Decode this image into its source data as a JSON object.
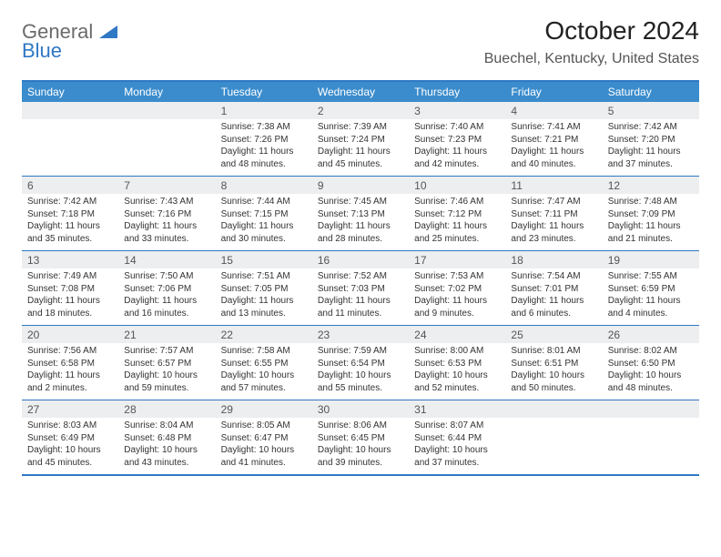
{
  "logo": {
    "general": "General",
    "blue": "Blue"
  },
  "title": "October 2024",
  "location": "Buechel, Kentucky, United States",
  "colors": {
    "header_bg": "#3b8ccc",
    "border": "#2f78c4",
    "daynum_bg": "#eceef0",
    "text": "#333333",
    "muted": "#555555"
  },
  "dayNames": [
    "Sunday",
    "Monday",
    "Tuesday",
    "Wednesday",
    "Thursday",
    "Friday",
    "Saturday"
  ],
  "weeks": [
    [
      {
        "num": "",
        "sunrise": "",
        "sunset": "",
        "daylight": ""
      },
      {
        "num": "",
        "sunrise": "",
        "sunset": "",
        "daylight": ""
      },
      {
        "num": "1",
        "sunrise": "Sunrise: 7:38 AM",
        "sunset": "Sunset: 7:26 PM",
        "daylight": "Daylight: 11 hours and 48 minutes."
      },
      {
        "num": "2",
        "sunrise": "Sunrise: 7:39 AM",
        "sunset": "Sunset: 7:24 PM",
        "daylight": "Daylight: 11 hours and 45 minutes."
      },
      {
        "num": "3",
        "sunrise": "Sunrise: 7:40 AM",
        "sunset": "Sunset: 7:23 PM",
        "daylight": "Daylight: 11 hours and 42 minutes."
      },
      {
        "num": "4",
        "sunrise": "Sunrise: 7:41 AM",
        "sunset": "Sunset: 7:21 PM",
        "daylight": "Daylight: 11 hours and 40 minutes."
      },
      {
        "num": "5",
        "sunrise": "Sunrise: 7:42 AM",
        "sunset": "Sunset: 7:20 PM",
        "daylight": "Daylight: 11 hours and 37 minutes."
      }
    ],
    [
      {
        "num": "6",
        "sunrise": "Sunrise: 7:42 AM",
        "sunset": "Sunset: 7:18 PM",
        "daylight": "Daylight: 11 hours and 35 minutes."
      },
      {
        "num": "7",
        "sunrise": "Sunrise: 7:43 AM",
        "sunset": "Sunset: 7:16 PM",
        "daylight": "Daylight: 11 hours and 33 minutes."
      },
      {
        "num": "8",
        "sunrise": "Sunrise: 7:44 AM",
        "sunset": "Sunset: 7:15 PM",
        "daylight": "Daylight: 11 hours and 30 minutes."
      },
      {
        "num": "9",
        "sunrise": "Sunrise: 7:45 AM",
        "sunset": "Sunset: 7:13 PM",
        "daylight": "Daylight: 11 hours and 28 minutes."
      },
      {
        "num": "10",
        "sunrise": "Sunrise: 7:46 AM",
        "sunset": "Sunset: 7:12 PM",
        "daylight": "Daylight: 11 hours and 25 minutes."
      },
      {
        "num": "11",
        "sunrise": "Sunrise: 7:47 AM",
        "sunset": "Sunset: 7:11 PM",
        "daylight": "Daylight: 11 hours and 23 minutes."
      },
      {
        "num": "12",
        "sunrise": "Sunrise: 7:48 AM",
        "sunset": "Sunset: 7:09 PM",
        "daylight": "Daylight: 11 hours and 21 minutes."
      }
    ],
    [
      {
        "num": "13",
        "sunrise": "Sunrise: 7:49 AM",
        "sunset": "Sunset: 7:08 PM",
        "daylight": "Daylight: 11 hours and 18 minutes."
      },
      {
        "num": "14",
        "sunrise": "Sunrise: 7:50 AM",
        "sunset": "Sunset: 7:06 PM",
        "daylight": "Daylight: 11 hours and 16 minutes."
      },
      {
        "num": "15",
        "sunrise": "Sunrise: 7:51 AM",
        "sunset": "Sunset: 7:05 PM",
        "daylight": "Daylight: 11 hours and 13 minutes."
      },
      {
        "num": "16",
        "sunrise": "Sunrise: 7:52 AM",
        "sunset": "Sunset: 7:03 PM",
        "daylight": "Daylight: 11 hours and 11 minutes."
      },
      {
        "num": "17",
        "sunrise": "Sunrise: 7:53 AM",
        "sunset": "Sunset: 7:02 PM",
        "daylight": "Daylight: 11 hours and 9 minutes."
      },
      {
        "num": "18",
        "sunrise": "Sunrise: 7:54 AM",
        "sunset": "Sunset: 7:01 PM",
        "daylight": "Daylight: 11 hours and 6 minutes."
      },
      {
        "num": "19",
        "sunrise": "Sunrise: 7:55 AM",
        "sunset": "Sunset: 6:59 PM",
        "daylight": "Daylight: 11 hours and 4 minutes."
      }
    ],
    [
      {
        "num": "20",
        "sunrise": "Sunrise: 7:56 AM",
        "sunset": "Sunset: 6:58 PM",
        "daylight": "Daylight: 11 hours and 2 minutes."
      },
      {
        "num": "21",
        "sunrise": "Sunrise: 7:57 AM",
        "sunset": "Sunset: 6:57 PM",
        "daylight": "Daylight: 10 hours and 59 minutes."
      },
      {
        "num": "22",
        "sunrise": "Sunrise: 7:58 AM",
        "sunset": "Sunset: 6:55 PM",
        "daylight": "Daylight: 10 hours and 57 minutes."
      },
      {
        "num": "23",
        "sunrise": "Sunrise: 7:59 AM",
        "sunset": "Sunset: 6:54 PM",
        "daylight": "Daylight: 10 hours and 55 minutes."
      },
      {
        "num": "24",
        "sunrise": "Sunrise: 8:00 AM",
        "sunset": "Sunset: 6:53 PM",
        "daylight": "Daylight: 10 hours and 52 minutes."
      },
      {
        "num": "25",
        "sunrise": "Sunrise: 8:01 AM",
        "sunset": "Sunset: 6:51 PM",
        "daylight": "Daylight: 10 hours and 50 minutes."
      },
      {
        "num": "26",
        "sunrise": "Sunrise: 8:02 AM",
        "sunset": "Sunset: 6:50 PM",
        "daylight": "Daylight: 10 hours and 48 minutes."
      }
    ],
    [
      {
        "num": "27",
        "sunrise": "Sunrise: 8:03 AM",
        "sunset": "Sunset: 6:49 PM",
        "daylight": "Daylight: 10 hours and 45 minutes."
      },
      {
        "num": "28",
        "sunrise": "Sunrise: 8:04 AM",
        "sunset": "Sunset: 6:48 PM",
        "daylight": "Daylight: 10 hours and 43 minutes."
      },
      {
        "num": "29",
        "sunrise": "Sunrise: 8:05 AM",
        "sunset": "Sunset: 6:47 PM",
        "daylight": "Daylight: 10 hours and 41 minutes."
      },
      {
        "num": "30",
        "sunrise": "Sunrise: 8:06 AM",
        "sunset": "Sunset: 6:45 PM",
        "daylight": "Daylight: 10 hours and 39 minutes."
      },
      {
        "num": "31",
        "sunrise": "Sunrise: 8:07 AM",
        "sunset": "Sunset: 6:44 PM",
        "daylight": "Daylight: 10 hours and 37 minutes."
      },
      {
        "num": "",
        "sunrise": "",
        "sunset": "",
        "daylight": ""
      },
      {
        "num": "",
        "sunrise": "",
        "sunset": "",
        "daylight": ""
      }
    ]
  ]
}
